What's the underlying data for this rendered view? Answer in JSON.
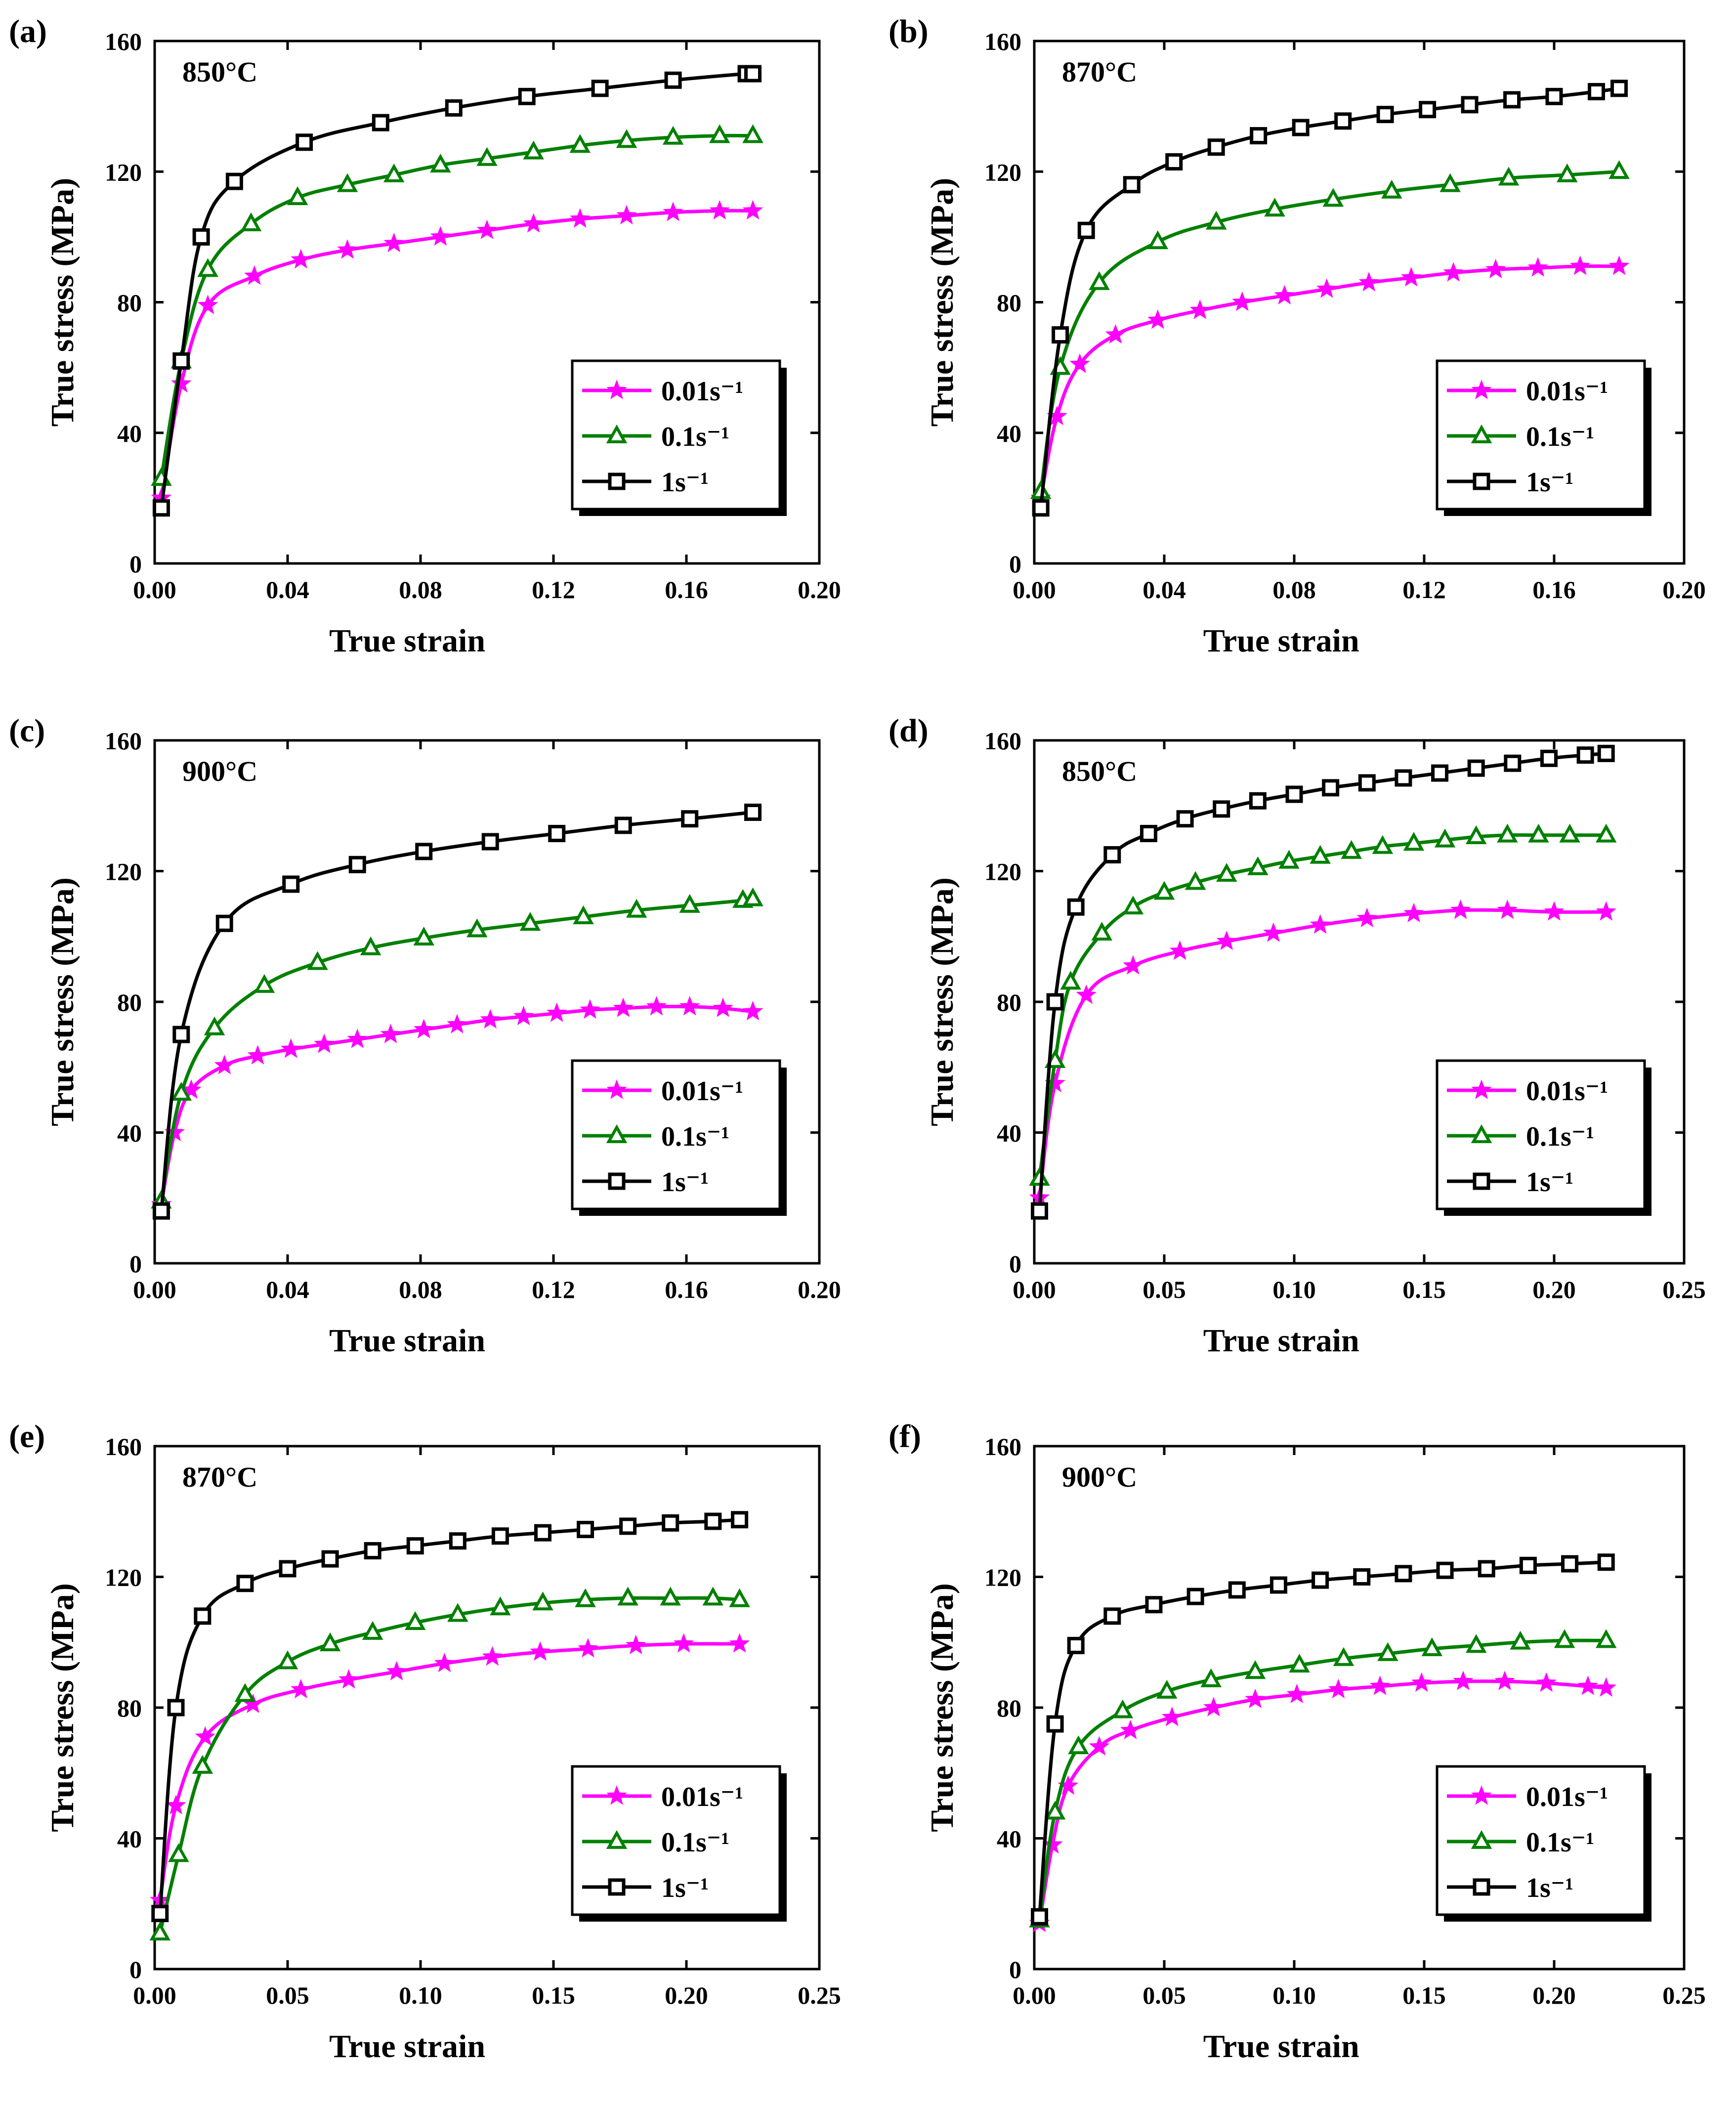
{
  "figure": {
    "series_styles": [
      {
        "color": "#ff00ff",
        "marker": "star"
      },
      {
        "color": "#008000",
        "marker": "triangle"
      },
      {
        "color": "#000000",
        "marker": "square"
      }
    ]
  },
  "chart_data": [
    {
      "type": "line",
      "panel_label": "(a)",
      "temperature": "850°C",
      "xlabel": "True strain",
      "ylabel": "True stress (MPa)",
      "xlim": [
        0,
        0.2
      ],
      "ylim": [
        0,
        160
      ],
      "xticks": [
        "0.00",
        "0.04",
        "0.08",
        "0.12",
        "0.16",
        "0.20"
      ],
      "yticks": [
        "0",
        "40",
        "80",
        "120",
        "160"
      ],
      "legend": [
        "0.01s⁻¹",
        "0.1s⁻¹",
        "1s⁻¹"
      ],
      "series": [
        {
          "name": "0.01s⁻¹",
          "x": [
            0.002,
            0.008,
            0.016,
            0.03,
            0.044,
            0.058,
            0.072,
            0.086,
            0.1,
            0.114,
            0.128,
            0.142,
            0.156,
            0.17,
            0.18
          ],
          "y": [
            20,
            55,
            79,
            88,
            93,
            96,
            98,
            100,
            102,
            104,
            105.5,
            106.5,
            107.5,
            108,
            108
          ]
        },
        {
          "name": "0.1s⁻¹",
          "x": [
            0.002,
            0.008,
            0.016,
            0.029,
            0.043,
            0.058,
            0.072,
            0.086,
            0.1,
            0.114,
            0.128,
            0.142,
            0.156,
            0.17,
            0.18
          ],
          "y": [
            26,
            62,
            90,
            104,
            112,
            116,
            119,
            122,
            124,
            126,
            128,
            129.5,
            130.5,
            131,
            131
          ]
        },
        {
          "name": "1s⁻¹",
          "x": [
            0.002,
            0.008,
            0.014,
            0.024,
            0.045,
            0.068,
            0.09,
            0.112,
            0.134,
            0.156,
            0.178,
            0.18
          ],
          "y": [
            17,
            62,
            100,
            117,
            129,
            135,
            139.5,
            143,
            145.5,
            148,
            150,
            150
          ]
        }
      ]
    },
    {
      "type": "line",
      "panel_label": "(b)",
      "temperature": "870°C",
      "xlabel": "True strain",
      "ylabel": "True stress (MPa)",
      "xlim": [
        0,
        0.2
      ],
      "ylim": [
        0,
        160
      ],
      "xticks": [
        "0.00",
        "0.04",
        "0.08",
        "0.12",
        "0.16",
        "0.20"
      ],
      "yticks": [
        "0",
        "40",
        "80",
        "120",
        "160"
      ],
      "legend": [
        "0.01s⁻¹",
        "0.1s⁻¹",
        "1s⁻¹"
      ],
      "series": [
        {
          "name": "0.01s⁻¹",
          "x": [
            0.002,
            0.007,
            0.014,
            0.025,
            0.038,
            0.051,
            0.064,
            0.077,
            0.09,
            0.103,
            0.116,
            0.129,
            0.142,
            0.155,
            0.168,
            0.18
          ],
          "y": [
            20,
            45,
            61,
            70,
            74.5,
            77.5,
            80,
            82,
            84,
            86,
            87.5,
            89,
            90,
            90.5,
            91,
            91
          ]
        },
        {
          "name": "0.1s⁻¹",
          "x": [
            0.002,
            0.008,
            0.02,
            0.038,
            0.056,
            0.074,
            0.092,
            0.11,
            0.128,
            0.146,
            0.164,
            0.18
          ],
          "y": [
            22,
            60,
            86,
            98.5,
            104.5,
            108.5,
            111.5,
            114,
            116,
            118,
            119,
            120
          ]
        },
        {
          "name": "1s⁻¹",
          "x": [
            0.002,
            0.008,
            0.016,
            0.03,
            0.043,
            0.056,
            0.069,
            0.082,
            0.095,
            0.108,
            0.121,
            0.134,
            0.147,
            0.16,
            0.173,
            0.18
          ],
          "y": [
            17,
            70,
            102,
            116,
            123,
            127.5,
            131,
            133.5,
            135.5,
            137.5,
            139,
            140.5,
            142,
            143,
            144.5,
            145.5
          ]
        }
      ]
    },
    {
      "type": "line",
      "panel_label": "(c)",
      "temperature": "900°C",
      "xlabel": "True strain",
      "ylabel": "True stress (MPa)",
      "xlim": [
        0,
        0.2
      ],
      "ylim": [
        0,
        160
      ],
      "xticks": [
        "0.00",
        "0.04",
        "0.08",
        "0.12",
        "0.16",
        "0.20"
      ],
      "yticks": [
        "0",
        "40",
        "80",
        "120",
        "160"
      ],
      "legend": [
        "0.01s⁻¹",
        "0.1s⁻¹",
        "1s⁻¹"
      ],
      "series": [
        {
          "name": "0.01s⁻¹",
          "x": [
            0.002,
            0.006,
            0.011,
            0.021,
            0.031,
            0.041,
            0.051,
            0.061,
            0.071,
            0.081,
            0.091,
            0.101,
            0.111,
            0.121,
            0.131,
            0.141,
            0.151,
            0.161,
            0.171,
            0.18
          ],
          "y": [
            18,
            40,
            53,
            60.5,
            63.5,
            65.5,
            67,
            68.5,
            70,
            71.5,
            73,
            74.5,
            75.5,
            76.5,
            77.5,
            78,
            78.5,
            78.5,
            78,
            77
          ]
        },
        {
          "name": "0.1s⁻¹",
          "x": [
            0.002,
            0.008,
            0.018,
            0.033,
            0.049,
            0.065,
            0.081,
            0.097,
            0.113,
            0.129,
            0.145,
            0.161,
            0.177,
            0.18
          ],
          "y": [
            19,
            52,
            72,
            85,
            92,
            96.5,
            99.5,
            102,
            104,
            106,
            108,
            109.5,
            111,
            111.5
          ]
        },
        {
          "name": "1s⁻¹",
          "x": [
            0.002,
            0.008,
            0.021,
            0.041,
            0.061,
            0.081,
            0.101,
            0.121,
            0.141,
            0.161,
            0.18
          ],
          "y": [
            16,
            70,
            104,
            116,
            122,
            126,
            129,
            131.5,
            134,
            136,
            138
          ]
        }
      ]
    },
    {
      "type": "line",
      "panel_label": "(d)",
      "temperature": "850°C",
      "xlabel": "True strain",
      "ylabel": "True stress (MPa)",
      "xlim": [
        0,
        0.25
      ],
      "ylim": [
        0,
        160
      ],
      "xticks": [
        "0.00",
        "0.05",
        "0.10",
        "0.15",
        "0.20",
        "0.25"
      ],
      "yticks": [
        "0",
        "40",
        "80",
        "120",
        "160"
      ],
      "legend": [
        "0.01s⁻¹",
        "0.1s⁻¹",
        "1s⁻¹"
      ],
      "series": [
        {
          "name": "0.01s⁻¹",
          "x": [
            0.002,
            0.008,
            0.02,
            0.038,
            0.056,
            0.074,
            0.092,
            0.11,
            0.128,
            0.146,
            0.164,
            0.182,
            0.2,
            0.22
          ],
          "y": [
            20,
            55,
            82,
            91,
            95.5,
            98.5,
            101,
            103.5,
            105.5,
            107,
            108,
            108,
            107.5,
            107.5
          ]
        },
        {
          "name": "0.1s⁻¹",
          "x": [
            0.002,
            0.008,
            0.014,
            0.026,
            0.038,
            0.05,
            0.062,
            0.074,
            0.086,
            0.098,
            0.11,
            0.122,
            0.134,
            0.146,
            0.158,
            0.17,
            0.182,
            0.194,
            0.206,
            0.22
          ],
          "y": [
            26,
            62,
            86,
            101,
            109,
            113.5,
            116.5,
            119,
            121,
            123,
            124.5,
            126,
            127.5,
            128.5,
            129.5,
            130.5,
            131,
            131,
            131,
            131
          ]
        },
        {
          "name": "1s⁻¹",
          "x": [
            0.002,
            0.008,
            0.016,
            0.03,
            0.044,
            0.058,
            0.072,
            0.086,
            0.1,
            0.114,
            0.128,
            0.142,
            0.156,
            0.17,
            0.184,
            0.198,
            0.212,
            0.22
          ],
          "y": [
            16,
            80,
            109,
            125,
            131.5,
            136,
            139,
            141.5,
            143.5,
            145.5,
            147,
            148.5,
            150,
            151.5,
            153,
            154.5,
            155.5,
            156
          ]
        }
      ]
    },
    {
      "type": "line",
      "panel_label": "(e)",
      "temperature": "870°C",
      "xlabel": "True strain",
      "ylabel": "True stress (MPa)",
      "xlim": [
        0,
        0.25
      ],
      "ylim": [
        0,
        160
      ],
      "xticks": [
        "0.00",
        "0.05",
        "0.10",
        "0.15",
        "0.20",
        "0.25"
      ],
      "yticks": [
        "0",
        "40",
        "80",
        "120",
        "160"
      ],
      "legend": [
        "0.01s⁻¹",
        "0.1s⁻¹",
        "1s⁻¹"
      ],
      "series": [
        {
          "name": "0.01s⁻¹",
          "x": [
            0.002,
            0.008,
            0.019,
            0.037,
            0.055,
            0.073,
            0.091,
            0.109,
            0.127,
            0.145,
            0.163,
            0.181,
            0.199,
            0.22
          ],
          "y": [
            21,
            50,
            71,
            81,
            85.5,
            88.5,
            91,
            93.5,
            95.5,
            97,
            98,
            99,
            99.5,
            99.5
          ]
        },
        {
          "name": "0.1s⁻¹",
          "x": [
            0.002,
            0.009,
            0.018,
            0.034,
            0.05,
            0.066,
            0.082,
            0.098,
            0.114,
            0.13,
            0.146,
            0.162,
            0.178,
            0.194,
            0.21,
            0.22
          ],
          "y": [
            11,
            35,
            62,
            84,
            94,
            99.5,
            103,
            106,
            108.5,
            110.5,
            112,
            113,
            113.5,
            113.5,
            113.5,
            113
          ]
        },
        {
          "name": "1s⁻¹",
          "x": [
            0.002,
            0.008,
            0.018,
            0.034,
            0.05,
            0.066,
            0.082,
            0.098,
            0.114,
            0.13,
            0.146,
            0.162,
            0.178,
            0.194,
            0.21,
            0.22
          ],
          "y": [
            17,
            80,
            108,
            118,
            122.5,
            125.5,
            128,
            129.5,
            131,
            132.5,
            133.5,
            134.5,
            135.5,
            136.5,
            137,
            137.5
          ]
        }
      ]
    },
    {
      "type": "line",
      "panel_label": "(f)",
      "temperature": "900°C",
      "xlabel": "True strain",
      "ylabel": "True stress (MPa)",
      "xlim": [
        0,
        0.25
      ],
      "ylim": [
        0,
        160
      ],
      "xticks": [
        "0.00",
        "0.05",
        "0.10",
        "0.15",
        "0.20",
        "0.25"
      ],
      "yticks": [
        "0",
        "40",
        "80",
        "120",
        "160"
      ],
      "legend": [
        "0.01s⁻¹",
        "0.1s⁻¹",
        "1s⁻¹"
      ],
      "series": [
        {
          "name": "0.01s⁻¹",
          "x": [
            0.002,
            0.007,
            0.013,
            0.025,
            0.037,
            0.053,
            0.069,
            0.085,
            0.101,
            0.117,
            0.133,
            0.149,
            0.165,
            0.181,
            0.197,
            0.213,
            0.22
          ],
          "y": [
            14,
            38,
            56,
            68,
            73,
            77,
            80,
            82.5,
            84,
            85.5,
            86.5,
            87.5,
            88,
            88,
            87.5,
            86.5,
            86
          ]
        },
        {
          "name": "0.1s⁻¹",
          "x": [
            0.002,
            0.008,
            0.017,
            0.034,
            0.051,
            0.068,
            0.085,
            0.102,
            0.119,
            0.136,
            0.153,
            0.17,
            0.187,
            0.204,
            0.22
          ],
          "y": [
            15,
            48,
            68,
            79,
            85,
            88.5,
            91,
            93,
            95,
            96.5,
            98,
            99,
            100,
            100.5,
            100.5
          ]
        },
        {
          "name": "1s⁻¹",
          "x": [
            0.002,
            0.008,
            0.016,
            0.03,
            0.046,
            0.062,
            0.078,
            0.094,
            0.11,
            0.126,
            0.142,
            0.158,
            0.174,
            0.19,
            0.206,
            0.22
          ],
          "y": [
            16,
            75,
            99,
            108,
            111.5,
            114,
            116,
            117.5,
            119,
            120,
            121,
            122,
            122.5,
            123.5,
            124,
            124.5
          ]
        }
      ]
    }
  ]
}
